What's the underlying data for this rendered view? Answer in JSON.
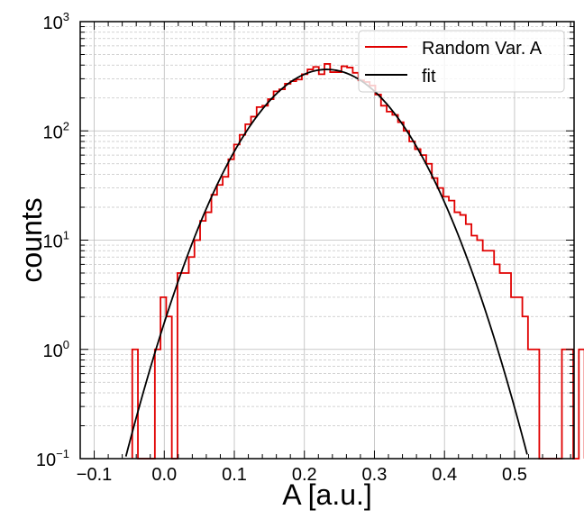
{
  "chart_data": {
    "type": "histogram",
    "xlabel": "A [a.u.]",
    "ylabel": "counts",
    "xlim": [
      -0.12,
      0.585
    ],
    "ylim": [
      0.1,
      1000
    ],
    "yscale": "log",
    "grid": true,
    "legend_position": "top-right",
    "x_ticks": [
      -0.1,
      0.0,
      0.1,
      0.2,
      0.3,
      0.4,
      0.5
    ],
    "x_tick_labels": [
      "−0.1",
      "0.0",
      "0.1",
      "0.2",
      "0.3",
      "0.4",
      "0.5"
    ],
    "y_ticks": [
      {
        "value": 0.1,
        "base": "10",
        "exp": "−1"
      },
      {
        "value": 1,
        "base": "10",
        "exp": "0"
      },
      {
        "value": 10,
        "base": "10",
        "exp": "1"
      },
      {
        "value": 100,
        "base": "10",
        "exp": "2"
      },
      {
        "value": 1000,
        "base": "10",
        "exp": "3"
      }
    ],
    "series": [
      {
        "name": "Random Var. A",
        "kind": "step-histogram",
        "color": "#e00000",
        "bin_width": 0.00807,
        "bins_start": -0.0457,
        "counts": [
          1,
          0,
          0,
          0,
          1,
          3,
          2,
          0,
          5,
          5,
          7,
          10,
          15,
          18,
          26,
          32,
          38,
          55,
          75,
          92,
          115,
          135,
          165,
          170,
          195,
          230,
          240,
          270,
          285,
          295,
          330,
          365,
          385,
          330,
          410,
          345,
          345,
          390,
          380,
          340,
          290,
          280,
          260,
          215,
          170,
          150,
          140,
          120,
          100,
          80,
          68,
          60,
          50,
          37,
          30,
          25,
          23,
          18,
          17,
          14,
          11,
          10,
          8,
          8,
          6,
          5,
          5,
          3,
          3,
          2,
          1,
          1,
          0,
          0,
          0,
          0,
          1,
          1,
          0,
          1
        ],
        "note": "zero-count bins are not drawn on the log axis"
      },
      {
        "name": "fit",
        "kind": "gaussian",
        "color": "#000000",
        "amplitude": 365,
        "mean": 0.232,
        "sigma": 0.071,
        "x_range": [
          -0.12,
          0.585
        ]
      }
    ]
  }
}
